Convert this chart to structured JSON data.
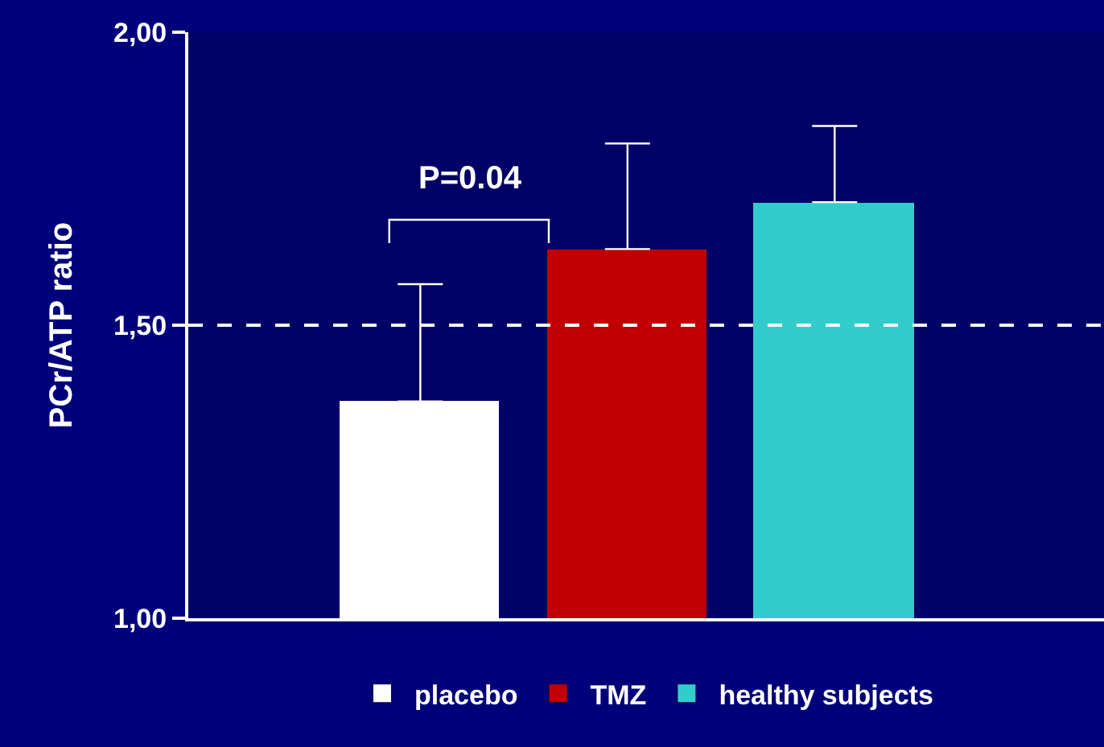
{
  "chart_data": {
    "type": "bar",
    "ylabel": "PCr/ATP ratio",
    "categories": [
      null,
      null,
      null
    ],
    "series": [
      {
        "name": "placebo",
        "color": "#ffffff",
        "values": [
          1.37,
          null,
          null
        ],
        "errors": [
          [
            1.37,
            1.57
          ],
          null,
          null
        ]
      },
      {
        "name": "TMZ",
        "color": "#c00000",
        "values": [
          null,
          1.63,
          null
        ],
        "errors": [
          null,
          [
            1.63,
            1.81
          ],
          null
        ]
      },
      {
        "name": "healthy subjects",
        "color": "#33cccc",
        "values": [
          null,
          null,
          1.71
        ],
        "errors": [
          null,
          null,
          [
            1.71,
            1.84
          ]
        ]
      }
    ],
    "ylim": [
      1,
      2
    ],
    "yticks": [
      {
        "value": 1,
        "label": "1,00"
      },
      {
        "value": 1.5,
        "label": "1,50"
      },
      {
        "value": 2,
        "label": "2,00"
      }
    ],
    "ref_lines": [
      {
        "axis": "y",
        "value": 1.5,
        "color": "#ffffff",
        "line_style": "dashed"
      }
    ],
    "annotations": [
      "P=0.04"
    ],
    "grid": false,
    "legend": "bottom",
    "tick_labels": "y"
  }
}
